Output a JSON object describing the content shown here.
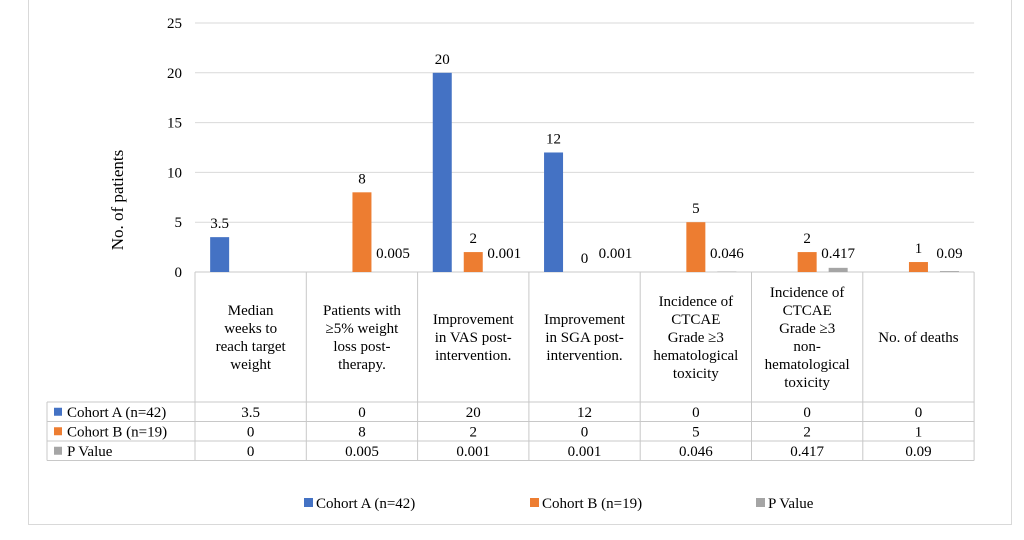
{
  "chart_data": {
    "type": "bar",
    "title": "",
    "xlabel": "",
    "ylabel": "No. of patients",
    "ylim": [
      0,
      25
    ],
    "yticks": [
      0,
      5,
      10,
      15,
      20,
      25
    ],
    "grid": true,
    "legend_position": "bottom",
    "categories": [
      [
        "Median",
        "weeks to",
        "reach target",
        "weight"
      ],
      [
        "Patients with",
        "≥5% weight",
        "loss post-",
        "therapy."
      ],
      [
        "Improvement",
        "in VAS post-",
        "intervention."
      ],
      [
        "Improvement",
        "in SGA post-",
        "intervention."
      ],
      [
        "Incidence of",
        "CTCAE",
        "Grade ≥3",
        "hematological",
        "toxicity"
      ],
      [
        "Incidence of",
        "CTCAE",
        "Grade ≥3",
        "non-",
        "hematological",
        "toxicity"
      ],
      [
        "No. of deaths"
      ]
    ],
    "series": [
      {
        "name": "Cohort A (n=42)",
        "color": "#4472c4",
        "values": [
          3.5,
          0,
          20,
          12,
          0,
          0,
          0
        ],
        "table": [
          "3.5",
          "0",
          "20",
          "12",
          "0",
          "0",
          "0"
        ],
        "labels": [
          "3.5",
          "",
          "20",
          "12",
          "",
          "",
          ""
        ]
      },
      {
        "name": "Cohort B (n=19)",
        "color": "#ed7d31",
        "values": [
          0,
          8,
          2,
          0,
          5,
          2,
          1
        ],
        "table": [
          "0",
          "8",
          "2",
          "0",
          "5",
          "2",
          "1"
        ],
        "labels": [
          "",
          "8",
          "2",
          "0",
          "5",
          "2",
          "1"
        ]
      },
      {
        "name": "P Value",
        "color": "#a5a5a5",
        "values": [
          0,
          0.005,
          0.001,
          0.001,
          0.046,
          0.417,
          0.09
        ],
        "table": [
          "0",
          "0.005",
          "0.001",
          "0.001",
          "0.046",
          "0.417",
          "0.09"
        ],
        "labels": [
          "",
          "0.005",
          "0.001",
          "0.001",
          "0.046",
          "0.417",
          "0.09"
        ]
      }
    ]
  }
}
